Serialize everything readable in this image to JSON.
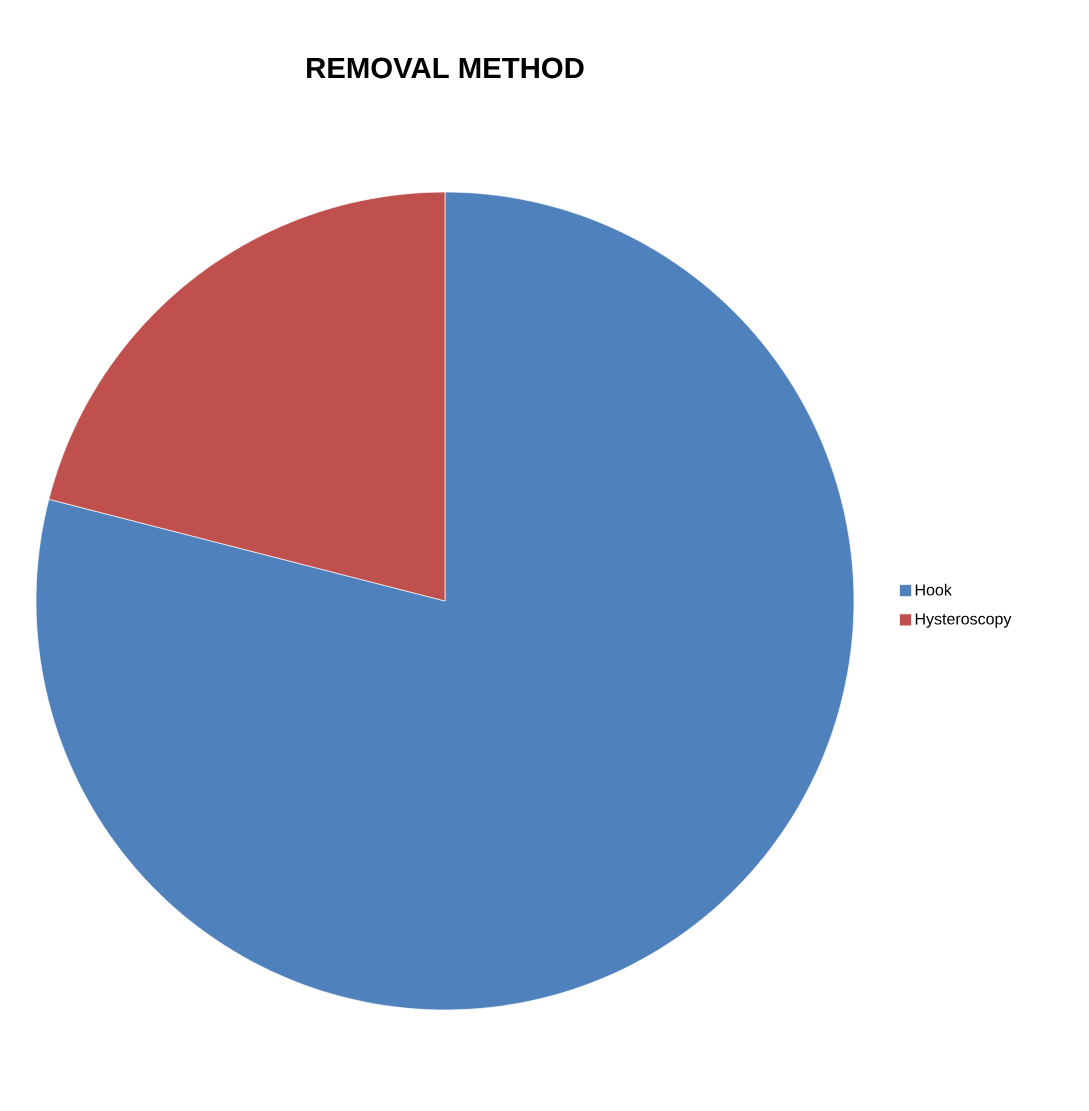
{
  "chart_data": {
    "type": "pie",
    "title": "REMOVAL METHOD",
    "categories": [
      "Hook",
      "Hysteroscopy"
    ],
    "values": [
      79,
      21
    ],
    "colors": [
      "#4f81bd",
      "#c0504d"
    ],
    "legend": "right"
  }
}
